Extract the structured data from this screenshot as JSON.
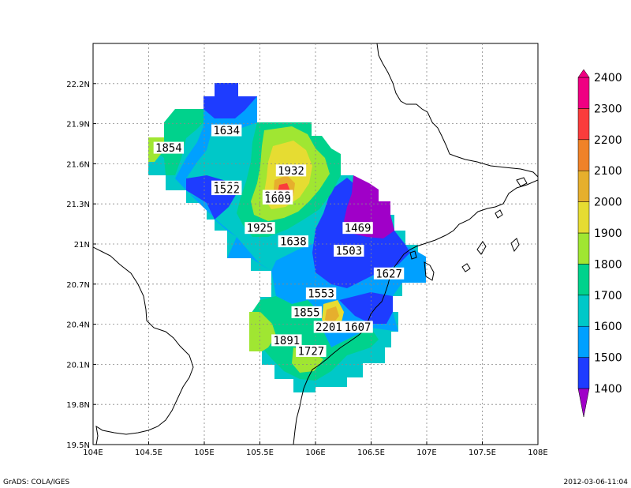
{
  "footer": {
    "credit": "GrADS: COLA/IGES",
    "timestamp": "2012-03-06-11:04"
  },
  "axes": {
    "x_ticks": [
      "104E",
      "104.5E",
      "105E",
      "105.5E",
      "106E",
      "106.5E",
      "107E",
      "107.5E",
      "108E"
    ],
    "y_ticks": [
      "19.5N",
      "19.8N",
      "20.1N",
      "20.4N",
      "20.7N",
      "21N",
      "21.3N",
      "21.6N",
      "21.9N",
      "22.2N"
    ]
  },
  "colorbar": {
    "levels": [
      "1400",
      "1500",
      "1600",
      "1700",
      "1800",
      "1900",
      "2000",
      "2100",
      "2200",
      "2300",
      "2400"
    ],
    "colors": [
      "#a000c8",
      "#1e3cff",
      "#00a0ff",
      "#00c8c8",
      "#00d28c",
      "#a0e632",
      "#e6dc32",
      "#e6af2d",
      "#f08228",
      "#fa3c3c",
      "#f00082"
    ]
  },
  "chart_data": {
    "type": "heatmap",
    "x_range": [
      104,
      108
    ],
    "y_range": [
      19.5,
      22.5
    ],
    "grid": true,
    "station_values": [
      {
        "label": "1634",
        "lon": 105.2,
        "lat": 21.85
      },
      {
        "label": "1854",
        "lon": 104.68,
        "lat": 21.72
      },
      {
        "label": "1932",
        "lon": 105.78,
        "lat": 21.55
      },
      {
        "label": "1569",
        "lon": 105.2,
        "lat": 21.43
      },
      {
        "label": "1522",
        "lon": 105.2,
        "lat": 21.41
      },
      {
        "label": "2422",
        "lon": 105.66,
        "lat": 21.36
      },
      {
        "label": "1609",
        "lon": 105.66,
        "lat": 21.34
      },
      {
        "label": "1469",
        "lon": 106.38,
        "lat": 21.12
      },
      {
        "label": "1925",
        "lon": 105.5,
        "lat": 21.12
      },
      {
        "label": "1638",
        "lon": 105.8,
        "lat": 21.02
      },
      {
        "label": "1503",
        "lon": 106.3,
        "lat": 20.95
      },
      {
        "label": "1627",
        "lon": 106.66,
        "lat": 20.78
      },
      {
        "label": "1553",
        "lon": 106.05,
        "lat": 20.63
      },
      {
        "label": "1855",
        "lon": 105.92,
        "lat": 20.49
      },
      {
        "label": "2201",
        "lon": 106.12,
        "lat": 20.38
      },
      {
        "label": "1607",
        "lon": 106.38,
        "lat": 20.38
      },
      {
        "label": "1891",
        "lon": 105.74,
        "lat": 20.28
      },
      {
        "label": "1727",
        "lon": 105.96,
        "lat": 20.2
      }
    ]
  }
}
